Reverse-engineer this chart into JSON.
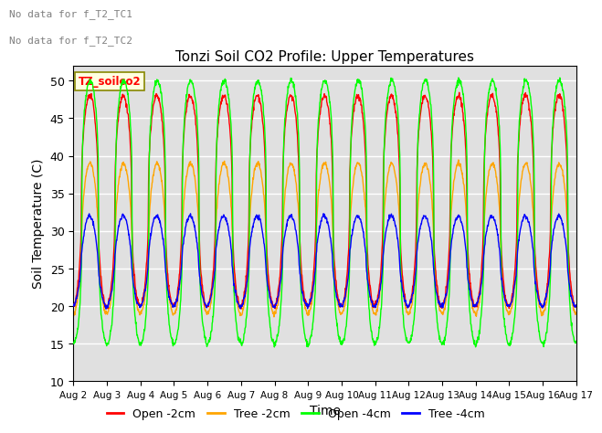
{
  "title": "Tonzi Soil CO2 Profile: Upper Temperatures",
  "xlabel": "Time",
  "ylabel": "Soil Temperature (C)",
  "ylim": [
    10,
    52
  ],
  "yticks": [
    10,
    15,
    20,
    25,
    30,
    35,
    40,
    45,
    50
  ],
  "bg_color": "#e0e0e0",
  "grid_color": "white",
  "note1": "No data for f_T2_TC1",
  "note2": "No data for f_T2_TC2",
  "legend_label": "TZ_soilco2",
  "series": {
    "open_2cm": {
      "label": "Open -2cm",
      "color": "#ff0000"
    },
    "tree_2cm": {
      "label": "Tree -2cm",
      "color": "#ffa500"
    },
    "open_4cm": {
      "label": "Open -4cm",
      "color": "#00ff00"
    },
    "tree_4cm": {
      "label": "Tree -4cm",
      "color": "#0000ff"
    }
  },
  "tick_labels": [
    "Aug 2",
    "Aug 3",
    "Aug 4",
    "Aug 5",
    "Aug 6",
    "Aug 7",
    "Aug 8",
    "Aug 9",
    "Aug 10",
    "Aug 11",
    "Aug 12",
    "Aug 13",
    "Aug 14",
    "Aug 15",
    "Aug 16",
    "Aug 17"
  ]
}
